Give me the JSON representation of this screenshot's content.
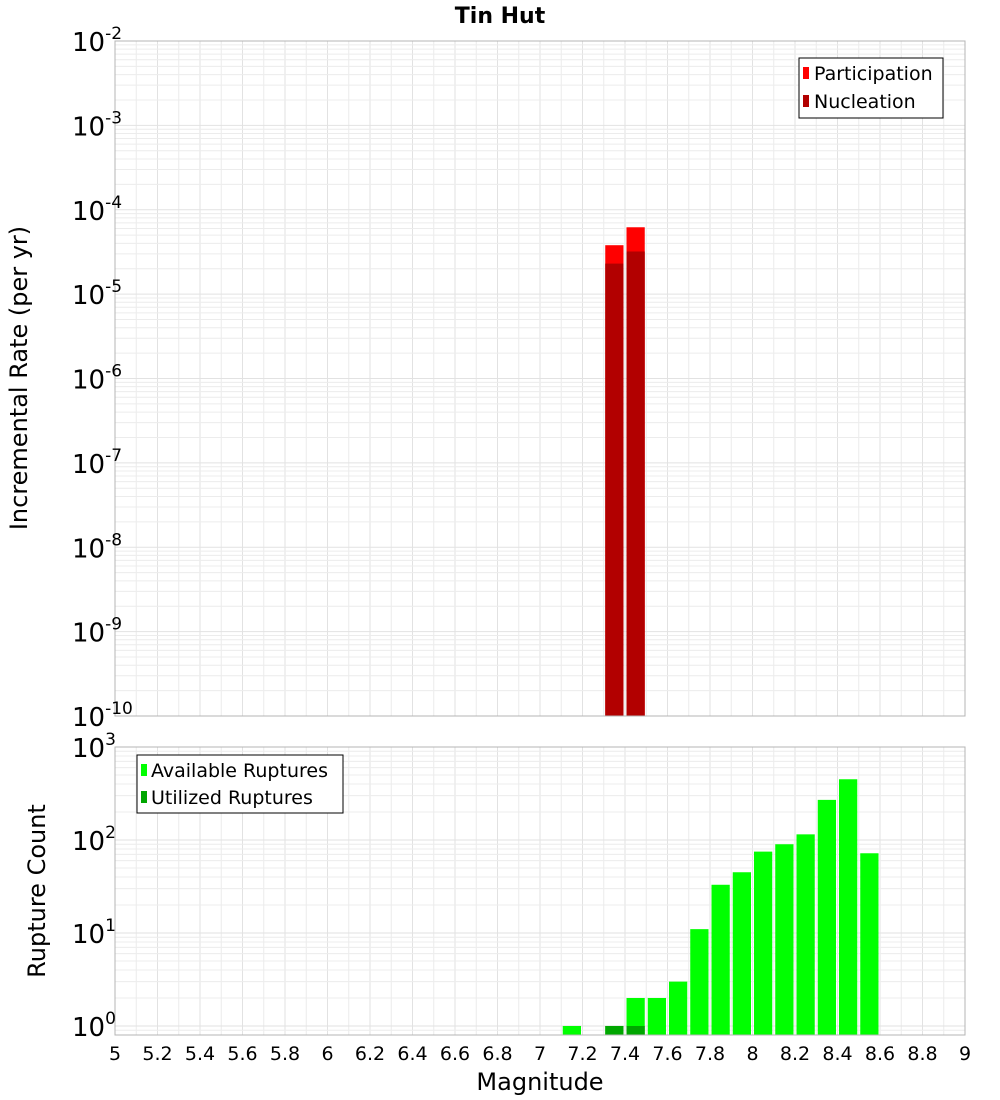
{
  "chart_data": [
    {
      "type": "bar",
      "id": "top",
      "title": "Tin Hut",
      "ylabel": "Incremental Rate (per yr)",
      "xlabel": "",
      "yscale": "log",
      "ylim": [
        1e-10,
        0.01
      ],
      "xlim": [
        5,
        9
      ],
      "bin_width": 0.1,
      "y_tick_base": "10",
      "y_tick_exponents": [
        "-10",
        "-9",
        "-8",
        "-7",
        "-6",
        "-5",
        "-4",
        "-3",
        "-2"
      ],
      "grid": true,
      "legend_position": "top-right",
      "series": [
        {
          "name": "Participation",
          "color": "#ff0000",
          "x": [
            7.35,
            7.45
          ],
          "values": [
            3.8e-05,
            6.2e-05
          ]
        },
        {
          "name": "Nucleation",
          "color": "#b20000",
          "x": [
            7.35,
            7.45
          ],
          "values": [
            2.3e-05,
            3.2e-05
          ]
        }
      ]
    },
    {
      "type": "bar",
      "id": "bottom",
      "ylabel": "Rupture Count",
      "xlabel": "Magnitude",
      "yscale": "log",
      "ylim": [
        0.8,
        1000
      ],
      "xlim": [
        5,
        9
      ],
      "bin_width": 0.1,
      "x_ticks": [
        "5",
        "5.2",
        "5.4",
        "5.6",
        "5.8",
        "6",
        "6.2",
        "6.4",
        "6.6",
        "6.8",
        "7",
        "7.2",
        "7.4",
        "7.6",
        "7.8",
        "8",
        "8.2",
        "8.4",
        "8.6",
        "8.8",
        "9"
      ],
      "y_tick_base": "10",
      "y_tick_exponents": [
        "0",
        "1",
        "2",
        "3"
      ],
      "grid": true,
      "legend_position": "top-left",
      "series": [
        {
          "name": "Available Ruptures",
          "color": "#00ff00",
          "x": [
            7.15,
            7.35,
            7.45,
            7.55,
            7.65,
            7.75,
            7.85,
            7.95,
            8.05,
            8.15,
            8.25,
            8.35,
            8.45,
            8.55
          ],
          "values": [
            1,
            1,
            2,
            2,
            3,
            11,
            33,
            45,
            75,
            90,
            115,
            270,
            450,
            72
          ]
        },
        {
          "name": "Utilized Ruptures",
          "color": "#00a600",
          "x": [
            7.35,
            7.45
          ],
          "values": [
            1,
            1
          ]
        }
      ]
    }
  ]
}
